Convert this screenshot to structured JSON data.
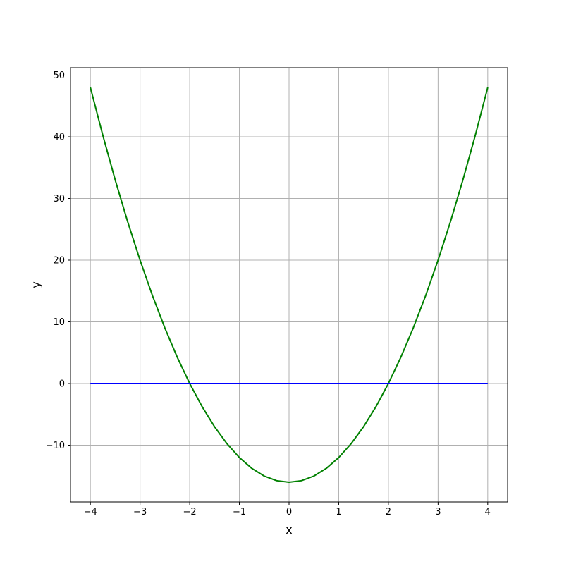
{
  "figure": {
    "background": "#ffffff",
    "plot_background": "#ffffff",
    "grid_color": "#b0b0b0",
    "spine_color": "#000000",
    "tick_label_color": "#000000",
    "tick_font_size": 13,
    "label_font_size": 16
  },
  "chart_data": {
    "type": "line",
    "title": "",
    "xlabel": "x",
    "ylabel": "y",
    "xlim": [
      -4.4,
      4.4
    ],
    "ylim": [
      -19.2,
      51.2
    ],
    "xticks": [
      -4,
      -3,
      -2,
      -1,
      0,
      1,
      2,
      3,
      4
    ],
    "yticks": [
      -10,
      0,
      10,
      20,
      30,
      40,
      50
    ],
    "grid": true,
    "legend_position": "none",
    "series": [
      {
        "name": "parabola",
        "color": "#008000",
        "linewidth": 2,
        "x": [
          -4,
          -3.75,
          -3.5,
          -3.25,
          -3,
          -2.75,
          -2.5,
          -2.25,
          -2,
          -1.75,
          -1.5,
          -1.25,
          -1,
          -0.75,
          -0.5,
          -0.25,
          0,
          0.25,
          0.5,
          0.75,
          1,
          1.25,
          1.5,
          1.75,
          2,
          2.25,
          2.5,
          2.75,
          3,
          3.25,
          3.5,
          3.75,
          4
        ],
        "y": [
          48,
          40.25,
          33,
          26.25,
          20,
          14.25,
          9,
          4.25,
          0,
          -3.75,
          -7,
          -9.75,
          -12,
          -13.75,
          -15,
          -15.75,
          -16,
          -15.75,
          -15,
          -13.75,
          -12,
          -9.75,
          -7,
          -3.75,
          0,
          4.25,
          9,
          14.25,
          20,
          26.25,
          33,
          40.25,
          48
        ]
      },
      {
        "name": "zero-line",
        "color": "#0000ff",
        "linewidth": 2,
        "x": [
          -4,
          4
        ],
        "y": [
          0,
          0
        ]
      }
    ]
  }
}
